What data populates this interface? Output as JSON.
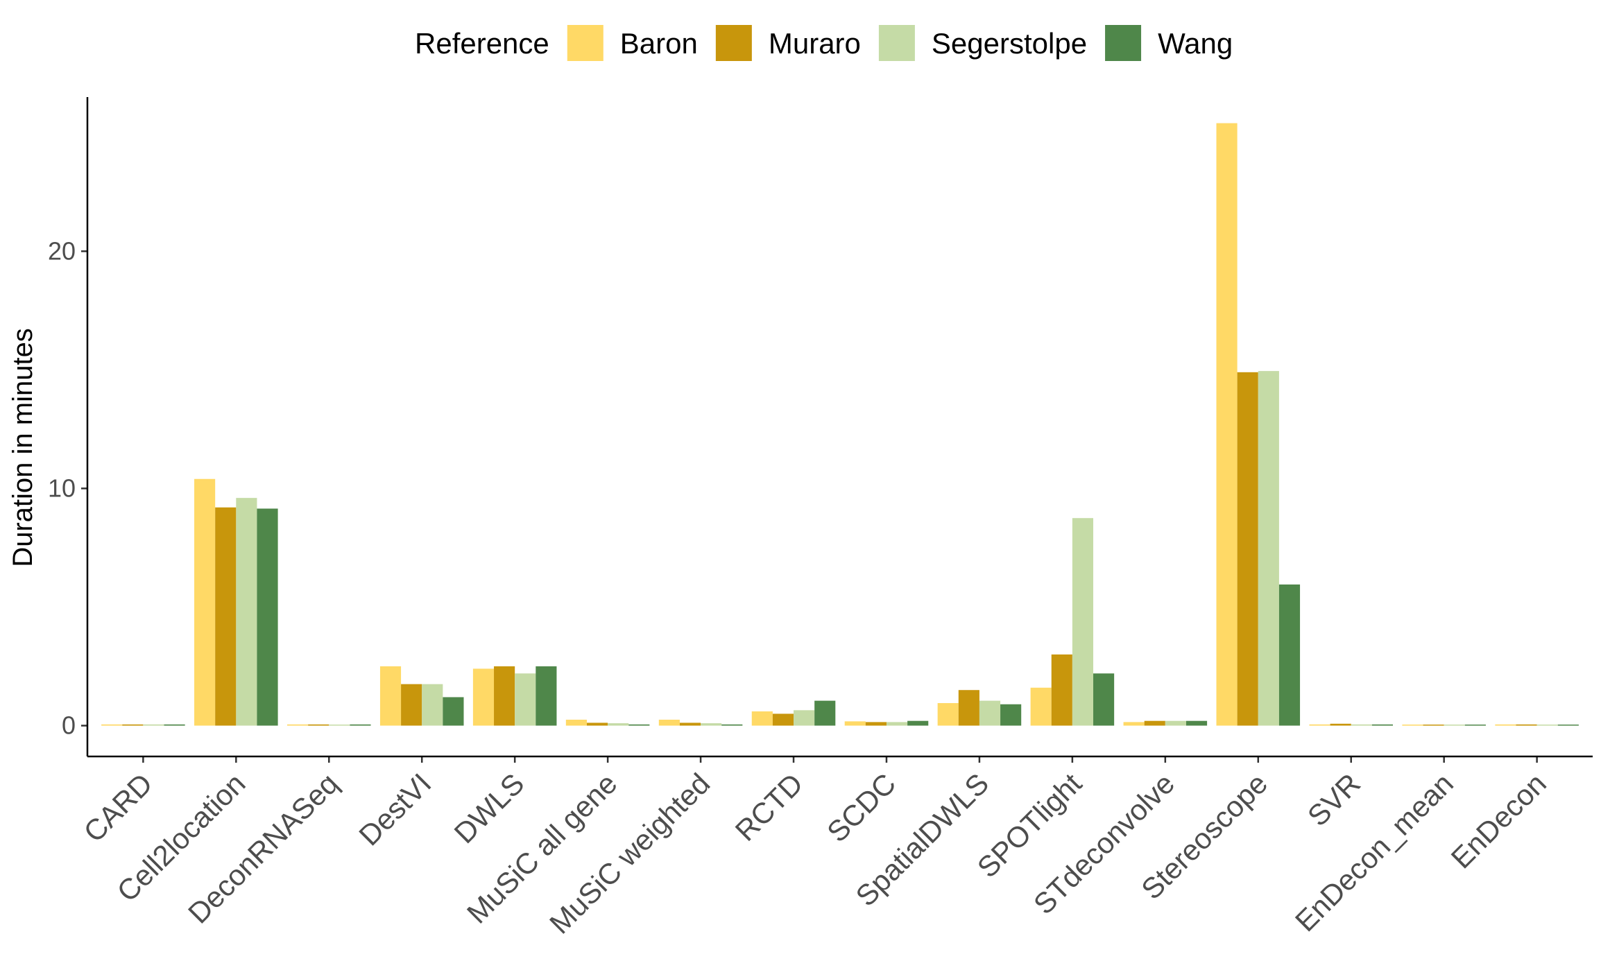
{
  "chart_data": {
    "type": "bar",
    "title": "",
    "xlabel": "",
    "ylabel": "Duration in minutes",
    "ylim": [
      -1.3,
      26.5
    ],
    "yticks": [
      0,
      10,
      20
    ],
    "grid": false,
    "legend": {
      "title": "Reference",
      "position": "top"
    },
    "categories": [
      "CARD",
      "Cell2location",
      "DeconRNASeq",
      "DestVI",
      "DWLS",
      "MuSiC all gene",
      "MuSiC weighted",
      "RCTD",
      "SCDC",
      "SpatialDWLS",
      "SPOTlight",
      "STdeconvolve",
      "Stereoscope",
      "SVR",
      "EnDecon_mean",
      "EnDecon"
    ],
    "series": [
      {
        "name": "Baron",
        "color": "#FFD966",
        "values": [
          0.05,
          10.4,
          0.05,
          2.5,
          2.4,
          0.25,
          0.25,
          0.6,
          0.18,
          0.95,
          1.6,
          0.15,
          25.4,
          0.05,
          0.01,
          0.05
        ]
      },
      {
        "name": "Muraro",
        "color": "#C8960C",
        "values": [
          0.05,
          9.2,
          0.05,
          1.75,
          2.5,
          0.12,
          0.12,
          0.5,
          0.15,
          1.5,
          3.0,
          0.2,
          14.9,
          0.08,
          0.01,
          0.05
        ]
      },
      {
        "name": "Segerstolpe",
        "color": "#C5DBA6",
        "values": [
          0.05,
          9.6,
          0.04,
          1.75,
          2.2,
          0.1,
          0.1,
          0.65,
          0.15,
          1.05,
          8.75,
          0.2,
          14.95,
          0.05,
          0.01,
          0.04
        ]
      },
      {
        "name": "Wang",
        "color": "#4F874A",
        "values": [
          0.05,
          9.15,
          0.05,
          1.2,
          2.5,
          0.05,
          0.05,
          1.05,
          0.2,
          0.9,
          2.2,
          0.2,
          5.95,
          0.05,
          0.01,
          0.04
        ]
      }
    ]
  }
}
